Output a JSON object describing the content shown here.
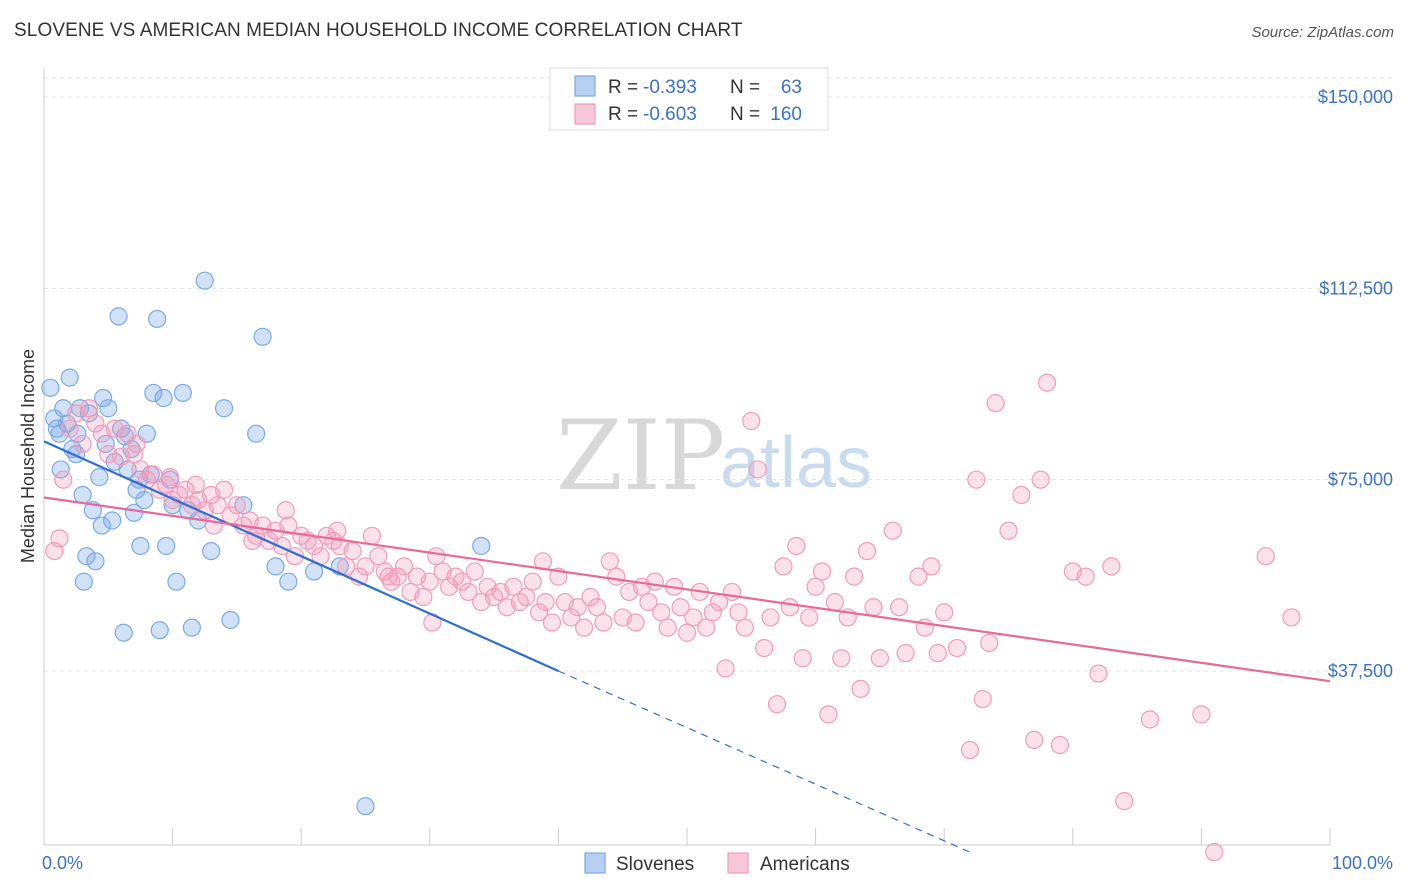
{
  "title": "SLOVENE VS AMERICAN MEDIAN HOUSEHOLD INCOME CORRELATION CHART",
  "source": "Source: ZipAtlas.com",
  "watermark": {
    "zip": "ZIP",
    "atlas": "atlas"
  },
  "colors": {
    "slovenes": "#7aaae6",
    "americans": "#f19bbb",
    "slovenes_line": "#2f6fd0",
    "americans_line": "#e86a97",
    "axis_text": "#3b72c5"
  },
  "legend_top": {
    "rows": [
      {
        "r_label": "R =",
        "r_value": "-0.393",
        "n_label": "N =",
        "n_value": "63"
      },
      {
        "r_label": "R =",
        "r_value": "-0.603",
        "n_label": "N =",
        "n_value": "160"
      }
    ]
  },
  "legend_bottom": [
    "Slovenes",
    "Americans"
  ],
  "chart_data": {
    "type": "scatter",
    "xlabel": "",
    "ylabel": "Median Household Income",
    "xlim": [
      0,
      100
    ],
    "ylim": [
      0,
      155000
    ],
    "x_tick_labels": {
      "left": "0.0%",
      "right": "100.0%"
    },
    "y_ticks": [
      {
        "value": 150000,
        "label": "$150,000"
      },
      {
        "value": 112500,
        "label": "$112,500"
      },
      {
        "value": 75000,
        "label": "$75,000"
      },
      {
        "value": 37500,
        "label": "$37,500"
      }
    ],
    "grid": true,
    "series": [
      {
        "name": "Slovenes",
        "trend": {
          "x_start": 0,
          "y_start": 82500,
          "x_solid_end": 40,
          "y_solid_end": 37500,
          "x_dash_end": 72,
          "y_dash_end": 2000
        },
        "points": [
          [
            0.5,
            93000
          ],
          [
            0.8,
            87000
          ],
          [
            1.0,
            85000
          ],
          [
            1.2,
            84000
          ],
          [
            1.5,
            89000
          ],
          [
            1.8,
            86000
          ],
          [
            2.0,
            95000
          ],
          [
            2.2,
            81000
          ],
          [
            2.5,
            80000
          ],
          [
            2.8,
            89000
          ],
          [
            3.0,
            72000
          ],
          [
            3.5,
            88000
          ],
          [
            3.8,
            69000
          ],
          [
            4.0,
            59000
          ],
          [
            4.3,
            75500
          ],
          [
            4.6,
            91000
          ],
          [
            5.0,
            89000
          ],
          [
            5.3,
            67000
          ],
          [
            5.5,
            78500
          ],
          [
            5.8,
            107000
          ],
          [
            6.0,
            85000
          ],
          [
            6.3,
            83500
          ],
          [
            6.5,
            77000
          ],
          [
            6.8,
            81000
          ],
          [
            7.0,
            68500
          ],
          [
            7.2,
            73000
          ],
          [
            7.5,
            62000
          ],
          [
            7.8,
            71000
          ],
          [
            8.0,
            84000
          ],
          [
            8.3,
            76000
          ],
          [
            8.5,
            92000
          ],
          [
            8.8,
            106500
          ],
          [
            9.0,
            45500
          ],
          [
            9.3,
            91000
          ],
          [
            9.5,
            62000
          ],
          [
            9.8,
            75000
          ],
          [
            10.0,
            70000
          ],
          [
            10.3,
            55000
          ],
          [
            10.8,
            92000
          ],
          [
            11.2,
            69000
          ],
          [
            12.0,
            67000
          ],
          [
            12.5,
            114000
          ],
          [
            13.0,
            61000
          ],
          [
            14.0,
            89000
          ],
          [
            14.5,
            47500
          ],
          [
            15.5,
            70000
          ],
          [
            16.5,
            84000
          ],
          [
            17.0,
            103000
          ],
          [
            18.0,
            58000
          ],
          [
            19.0,
            55000
          ],
          [
            21.0,
            57000
          ],
          [
            23.0,
            58000
          ],
          [
            25.0,
            11000
          ],
          [
            34.0,
            62000
          ],
          [
            1.3,
            77000
          ],
          [
            2.6,
            84000
          ],
          [
            3.3,
            60000
          ],
          [
            4.8,
            82000
          ],
          [
            6.2,
            45000
          ],
          [
            7.4,
            75000
          ],
          [
            3.1,
            55000
          ],
          [
            4.5,
            66000
          ],
          [
            11.5,
            46000
          ]
        ]
      },
      {
        "name": "Americans",
        "trend": {
          "x_start": 0,
          "y_start": 71500,
          "x_end": 100,
          "y_end": 35500
        },
        "points": [
          [
            0.8,
            61000
          ],
          [
            1.2,
            63500
          ],
          [
            1.5,
            75000
          ],
          [
            2.0,
            85000
          ],
          [
            2.5,
            88000
          ],
          [
            3.0,
            82000
          ],
          [
            3.5,
            89000
          ],
          [
            4.0,
            86000
          ],
          [
            4.5,
            84000
          ],
          [
            5.0,
            80000
          ],
          [
            5.5,
            85000
          ],
          [
            6.0,
            79500
          ],
          [
            6.5,
            84000
          ],
          [
            7.0,
            80000
          ],
          [
            7.5,
            77000
          ],
          [
            8.0,
            75000
          ],
          [
            8.5,
            76000
          ],
          [
            9.0,
            73000
          ],
          [
            9.5,
            74000
          ],
          [
            10.0,
            71000
          ],
          [
            10.5,
            72000
          ],
          [
            11.0,
            73000
          ],
          [
            11.5,
            70000
          ],
          [
            12.0,
            71000
          ],
          [
            12.5,
            69000
          ],
          [
            13.0,
            72000
          ],
          [
            13.5,
            70000
          ],
          [
            14.0,
            73000
          ],
          [
            14.5,
            68000
          ],
          [
            15.0,
            70000
          ],
          [
            15.5,
            66000
          ],
          [
            16.0,
            67000
          ],
          [
            16.5,
            64000
          ],
          [
            17.0,
            66000
          ],
          [
            17.5,
            63000
          ],
          [
            18.0,
            65000
          ],
          [
            18.5,
            62000
          ],
          [
            19.0,
            66000
          ],
          [
            19.5,
            60000
          ],
          [
            20.0,
            64000
          ],
          [
            20.5,
            63000
          ],
          [
            21.0,
            62000
          ],
          [
            21.5,
            60000
          ],
          [
            22.0,
            64000
          ],
          [
            22.5,
            63000
          ],
          [
            23.0,
            62000
          ],
          [
            23.5,
            58000
          ],
          [
            24.0,
            61000
          ],
          [
            24.5,
            56000
          ],
          [
            25.0,
            58000
          ],
          [
            25.5,
            64000
          ],
          [
            26.0,
            60000
          ],
          [
            26.5,
            57000
          ],
          [
            27.0,
            55000
          ],
          [
            27.5,
            56000
          ],
          [
            28.0,
            58000
          ],
          [
            28.5,
            53000
          ],
          [
            29.0,
            56000
          ],
          [
            29.5,
            52000
          ],
          [
            30.0,
            55000
          ],
          [
            30.5,
            60000
          ],
          [
            31.0,
            57000
          ],
          [
            31.5,
            54000
          ],
          [
            32.0,
            56000
          ],
          [
            32.5,
            55000
          ],
          [
            33.0,
            53000
          ],
          [
            33.5,
            57000
          ],
          [
            34.0,
            51000
          ],
          [
            34.5,
            54000
          ],
          [
            35.0,
            52000
          ],
          [
            35.5,
            53000
          ],
          [
            36.0,
            50000
          ],
          [
            36.5,
            54000
          ],
          [
            37.0,
            51000
          ],
          [
            37.5,
            52000
          ],
          [
            38.0,
            55000
          ],
          [
            38.5,
            49000
          ],
          [
            39.0,
            51000
          ],
          [
            39.5,
            47000
          ],
          [
            40.0,
            56000
          ],
          [
            40.5,
            51000
          ],
          [
            41.0,
            48000
          ],
          [
            41.5,
            50000
          ],
          [
            42.0,
            46000
          ],
          [
            42.5,
            52000
          ],
          [
            43.0,
            50000
          ],
          [
            43.5,
            47000
          ],
          [
            44.0,
            59000
          ],
          [
            44.5,
            56000
          ],
          [
            45.0,
            48000
          ],
          [
            45.5,
            53000
          ],
          [
            46.0,
            47000
          ],
          [
            46.5,
            54000
          ],
          [
            47.0,
            51000
          ],
          [
            47.5,
            55000
          ],
          [
            48.0,
            49000
          ],
          [
            48.5,
            46000
          ],
          [
            49.0,
            54000
          ],
          [
            49.5,
            50000
          ],
          [
            50.0,
            45000
          ],
          [
            50.5,
            48000
          ],
          [
            51.0,
            53000
          ],
          [
            51.5,
            46000
          ],
          [
            52.0,
            49000
          ],
          [
            52.5,
            51000
          ],
          [
            53.0,
            38000
          ],
          [
            53.5,
            53000
          ],
          [
            54.0,
            49000
          ],
          [
            54.5,
            46000
          ],
          [
            55.0,
            86500
          ],
          [
            55.5,
            77000
          ],
          [
            56.0,
            42000
          ],
          [
            56.5,
            48000
          ],
          [
            57.0,
            31000
          ],
          [
            57.5,
            58000
          ],
          [
            58.0,
            50000
          ],
          [
            58.5,
            62000
          ],
          [
            59.0,
            40000
          ],
          [
            59.5,
            48000
          ],
          [
            60.0,
            54000
          ],
          [
            60.5,
            57000
          ],
          [
            61.0,
            29000
          ],
          [
            61.5,
            51000
          ],
          [
            62.0,
            40000
          ],
          [
            62.5,
            48000
          ],
          [
            63.0,
            56000
          ],
          [
            63.5,
            34000
          ],
          [
            64.0,
            61000
          ],
          [
            64.5,
            50000
          ],
          [
            65.0,
            40000
          ],
          [
            66.0,
            65000
          ],
          [
            66.5,
            50000
          ],
          [
            67.0,
            41000
          ],
          [
            68.0,
            56000
          ],
          [
            68.5,
            46000
          ],
          [
            69.0,
            58000
          ],
          [
            69.5,
            41000
          ],
          [
            70.0,
            49000
          ],
          [
            71.0,
            42000
          ],
          [
            72.0,
            22000
          ],
          [
            72.5,
            75000
          ],
          [
            73.0,
            32000
          ],
          [
            73.5,
            43000
          ],
          [
            74.0,
            90000
          ],
          [
            75.0,
            65000
          ],
          [
            76.0,
            72000
          ],
          [
            77.0,
            24000
          ],
          [
            77.5,
            75000
          ],
          [
            78.0,
            94000
          ],
          [
            79.0,
            23000
          ],
          [
            80.0,
            57000
          ],
          [
            81.0,
            56000
          ],
          [
            82.0,
            37000
          ],
          [
            83.0,
            58000
          ],
          [
            84.0,
            12000
          ],
          [
            86.0,
            28000
          ],
          [
            90.0,
            29000
          ],
          [
            91.0,
            2000
          ],
          [
            95.0,
            60000
          ],
          [
            97.0,
            48000
          ],
          [
            7.2,
            82000
          ],
          [
            9.8,
            75500
          ],
          [
            11.8,
            74000
          ],
          [
            13.2,
            66000
          ],
          [
            16.2,
            63000
          ],
          [
            18.8,
            69000
          ],
          [
            22.8,
            65000
          ],
          [
            26.8,
            56000
          ],
          [
            30.2,
            47000
          ],
          [
            38.8,
            59000
          ]
        ]
      }
    ]
  }
}
